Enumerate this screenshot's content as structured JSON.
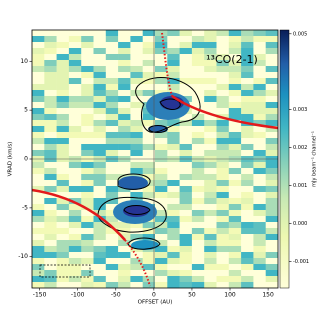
{
  "chart_data": {
    "type": "pv-diagram",
    "title": "¹³CO(2-1)",
    "x_label": "OFFSET (AU)",
    "y_label": "VRAD (km/s)",
    "colorbar_label": "mJy beam⁻¹ channel⁻¹",
    "xlim": [
      -160,
      163
    ],
    "ylim": [
      -13.2,
      13.2
    ],
    "xticks": [
      -150,
      -100,
      -50,
      0,
      50,
      100,
      150
    ],
    "yticks": [
      -10,
      -5,
      0,
      5,
      10
    ],
    "clim": [
      -0.0017,
      0.0051
    ],
    "cticks": [
      -0.001,
      {
        "value": 0,
        "label": "0.000"
      },
      0.001,
      0.002,
      0.003,
      0.005
    ]
  }
}
